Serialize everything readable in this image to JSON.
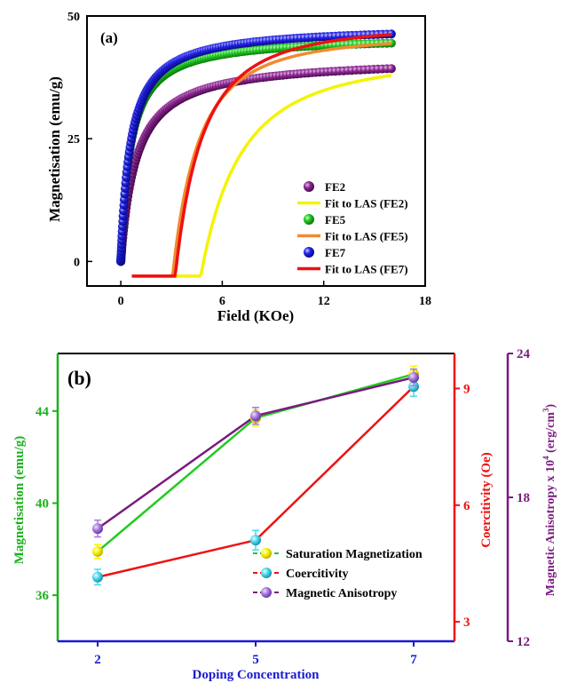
{
  "chart_data": [
    {
      "type": "scatter",
      "panel_label": "(a)",
      "xlabel": "Field (KOe)",
      "ylabel": "Magnetisation (emu/g)",
      "xlim": [
        -2,
        18
      ],
      "ylim": [
        -5,
        50
      ],
      "xticks": [
        "0",
        "6",
        "12",
        "18"
      ],
      "yticks": [
        "0",
        "25",
        "50"
      ],
      "legend_position": "bottom-right",
      "grid": false,
      "series": [
        {
          "name": "FE2",
          "kind": "markers",
          "color": "#7a1a7e",
          "Ms": 41.5,
          "a": 0.9,
          "fieldRange": [
            0,
            16
          ]
        },
        {
          "name": "Fit to LAS (FE2)",
          "kind": "line",
          "color": "#f4f400",
          "Ms": 41.8,
          "b": 24,
          "fieldRange": [
            1.15,
            16
          ]
        },
        {
          "name": "FE5",
          "kind": "markers",
          "color": "#1ec81e",
          "Ms": 46.0,
          "a": 0.55,
          "fieldRange": [
            0,
            16
          ]
        },
        {
          "name": "Fit to LAS (FE5)",
          "kind": "line",
          "color": "#f28a30",
          "Ms": 46.2,
          "b": 10,
          "fieldRange": [
            0.7,
            16
          ]
        },
        {
          "name": "FE7",
          "kind": "markers",
          "color": "#1a1ae0",
          "Ms": 48.0,
          "a": 0.58,
          "fieldRange": [
            0,
            16
          ]
        },
        {
          "name": "Fit to LAS (FE7)",
          "kind": "line",
          "color": "#ee1111",
          "Ms": 48.3,
          "b": 11,
          "fieldRange": [
            0.65,
            16
          ]
        }
      ]
    },
    {
      "type": "line",
      "panel_label": "(b)",
      "xlabel": "Doping Concentration",
      "categories": [
        "2",
        "5",
        "7"
      ],
      "y_axes": [
        {
          "id": "left",
          "label": "Magnetisation (emu/g)",
          "color": "#1bb21b",
          "ylim": [
            34,
            46.5
          ],
          "ticks": [
            "36",
            "40",
            "44"
          ]
        },
        {
          "id": "right1",
          "label": "Coercitivity (Oe)",
          "color": "#ee1111",
          "ylim": [
            2.5,
            9.9
          ],
          "ticks": [
            "3",
            "6",
            "9"
          ]
        },
        {
          "id": "right2",
          "label": "Magnetic Anisotropy x 10",
          "label_sup1": "4",
          "label_tail": " (erg/cm",
          "label_sup2": "3",
          "label_end": ")",
          "color": "#7a1a7e",
          "ylim": [
            12,
            24
          ],
          "ticks": [
            "12",
            "18",
            "24"
          ]
        }
      ],
      "legend_position": "bottom-right",
      "series": [
        {
          "name": "Saturation Magnetization",
          "axis": "left",
          "line_color": "#22cc22",
          "marker_color": "#f4f400",
          "values": [
            37.9,
            43.7,
            45.6
          ],
          "errors": [
            0.3,
            0.35,
            0.35
          ]
        },
        {
          "name": "Coercitivity",
          "axis": "right1",
          "line_color": "#ee1111",
          "marker_color": "#4ad8ec",
          "values": [
            4.15,
            5.1,
            9.05
          ],
          "errors": [
            0.2,
            0.25,
            0.25
          ]
        },
        {
          "name": "Magnetic Anisotropy",
          "axis": "right2",
          "line_color": "#7a1a7e",
          "marker_color": "#a77bdc",
          "values": [
            16.7,
            21.4,
            23.0
          ],
          "errors": [
            0.35,
            0.35,
            0.35
          ]
        }
      ]
    }
  ]
}
